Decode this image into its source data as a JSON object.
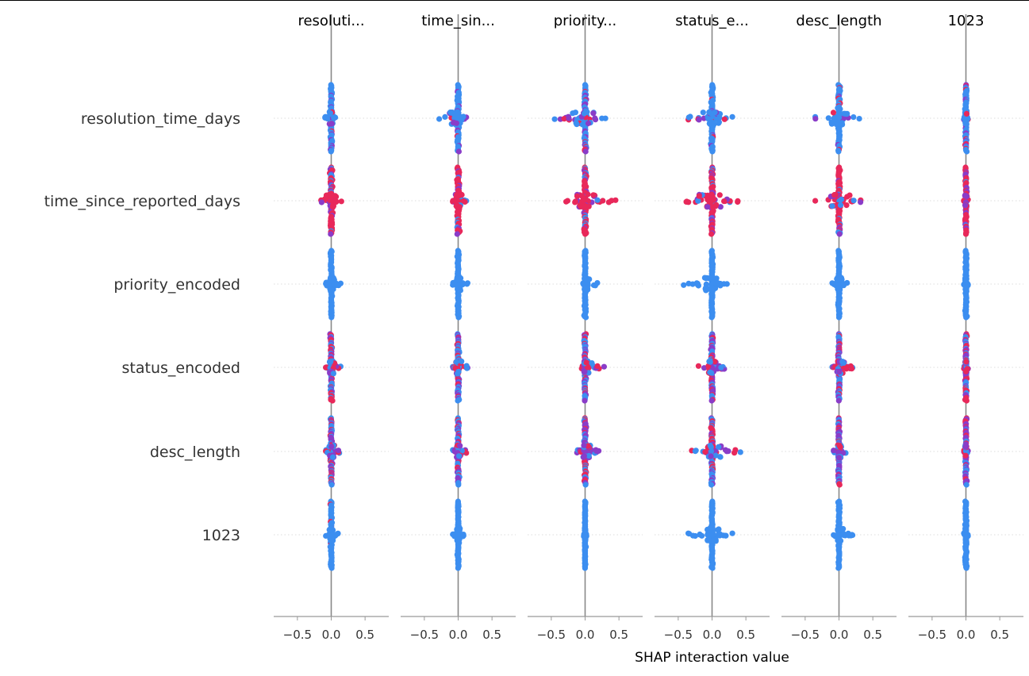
{
  "chart_data": {
    "type": "scatter",
    "subtype": "shap-interaction-summary-grid",
    "column_titles": [
      "resoluti...",
      "time_sin...",
      "priority...",
      "status_e...",
      "desc_length",
      "1023"
    ],
    "row_labels": [
      "resolution_time_days",
      "time_since_reported_days",
      "priority_encoded",
      "status_encoded",
      "desc_length",
      "1023"
    ],
    "xlabel": "SHAP interaction value",
    "xlim": [
      -0.85,
      0.85
    ],
    "xticks": [
      -0.5,
      0.0,
      0.5
    ],
    "xtick_labels": [
      "−0.5",
      "0.0",
      "0.5"
    ],
    "grid": false,
    "colors": {
      "low": "#3c8ef0",
      "mid": "#8a3cc8",
      "high": "#e8285a",
      "axis": "#999999",
      "row_guide": "#dddddd",
      "zero_line": "#888888"
    },
    "cells": [
      [
        {
          "min": -0.09,
          "max": 0.06,
          "spread": 0.025,
          "high": 0.05,
          "mid": 0.15,
          "bands": [
            0.45,
            0.35
          ]
        },
        {
          "min": -0.28,
          "max": 0.12,
          "spread": 0.025,
          "high": 0.05,
          "mid": 0.15,
          "bands": [
            0.45,
            0.35
          ]
        },
        {
          "min": -0.45,
          "max": 0.3,
          "spread": 0.03,
          "high": 0.15,
          "mid": 0.15,
          "bands": [
            0.45,
            0.35
          ]
        },
        {
          "min": -0.35,
          "max": 0.3,
          "spread": 0.03,
          "high": 0.05,
          "mid": 0.15,
          "bands": [
            0.45,
            0.35
          ]
        },
        {
          "min": -0.35,
          "max": 0.3,
          "spread": 0.03,
          "high": 0.1,
          "mid": 0.15,
          "bands": [
            0.45,
            0.35
          ]
        },
        {
          "min": -0.03,
          "max": 0.03,
          "spread": 0.02,
          "high": 0.15,
          "mid": 0.2,
          "bands": [
            0.45,
            0.35
          ]
        }
      ],
      [
        {
          "min": -0.15,
          "max": 0.15,
          "spread": 0.03,
          "high": 0.75,
          "mid": 0.15,
          "bands": [
            0.5,
            0.35
          ]
        },
        {
          "min": -0.08,
          "max": 0.12,
          "spread": 0.03,
          "high": 0.75,
          "mid": 0.15,
          "bands": [
            0.5,
            0.35
          ]
        },
        {
          "min": -0.28,
          "max": 0.45,
          "spread": 0.03,
          "high": 0.75,
          "mid": 0.15,
          "bands": [
            0.5,
            0.35
          ]
        },
        {
          "min": -0.38,
          "max": 0.38,
          "spread": 0.03,
          "high": 0.75,
          "mid": 0.15,
          "bands": [
            0.5,
            0.35
          ]
        },
        {
          "min": -0.35,
          "max": 0.32,
          "spread": 0.03,
          "high": 0.7,
          "mid": 0.15,
          "bands": [
            0.5,
            0.35
          ]
        },
        {
          "min": -0.03,
          "max": 0.03,
          "spread": 0.02,
          "high": 0.65,
          "mid": 0.25,
          "bands": [
            0.5,
            0.35
          ]
        }
      ],
      [
        {
          "min": -0.08,
          "max": 0.14,
          "spread": 0.02,
          "high": 0.0,
          "mid": 0.0,
          "bands": [
            0.35,
            0.25
          ]
        },
        {
          "min": -0.08,
          "max": 0.14,
          "spread": 0.02,
          "high": 0.0,
          "mid": 0.0,
          "bands": [
            0.35,
            0.25
          ]
        },
        {
          "min": -0.03,
          "max": 0.18,
          "spread": 0.02,
          "high": 0.0,
          "mid": 0.0,
          "bands": [
            0.35,
            0.25
          ]
        },
        {
          "min": -0.42,
          "max": 0.22,
          "spread": 0.02,
          "high": 0.0,
          "mid": 0.0,
          "bands": [
            0.35,
            0.25
          ]
        },
        {
          "min": -0.1,
          "max": 0.12,
          "spread": 0.02,
          "high": 0.0,
          "mid": 0.0,
          "bands": [
            0.35,
            0.25
          ]
        },
        {
          "min": -0.03,
          "max": 0.03,
          "spread": 0.02,
          "high": 0.0,
          "mid": 0.0,
          "bands": [
            0.35,
            0.25
          ]
        }
      ],
      [
        {
          "min": -0.08,
          "max": 0.14,
          "spread": 0.025,
          "high": 0.3,
          "mid": 0.3,
          "bands": [
            0.4,
            0.3
          ]
        },
        {
          "min": -0.08,
          "max": 0.14,
          "spread": 0.025,
          "high": 0.3,
          "mid": 0.3,
          "bands": [
            0.4,
            0.3
          ]
        },
        {
          "min": -0.05,
          "max": 0.28,
          "spread": 0.025,
          "high": 0.25,
          "mid": 0.3,
          "bands": [
            0.4,
            0.3
          ]
        },
        {
          "min": -0.2,
          "max": 0.18,
          "spread": 0.025,
          "high": 0.3,
          "mid": 0.3,
          "bands": [
            0.4,
            0.3
          ]
        },
        {
          "min": -0.1,
          "max": 0.2,
          "spread": 0.025,
          "high": 0.25,
          "mid": 0.3,
          "bands": [
            0.4,
            0.3
          ]
        },
        {
          "min": -0.03,
          "max": 0.03,
          "spread": 0.02,
          "high": 0.3,
          "mid": 0.35,
          "bands": [
            0.4,
            0.3
          ]
        }
      ],
      [
        {
          "min": -0.08,
          "max": 0.12,
          "spread": 0.025,
          "high": 0.25,
          "mid": 0.45,
          "bands": [
            0.4,
            0.3
          ]
        },
        {
          "min": -0.08,
          "max": 0.12,
          "spread": 0.025,
          "high": 0.25,
          "mid": 0.45,
          "bands": [
            0.4,
            0.3
          ]
        },
        {
          "min": -0.12,
          "max": 0.2,
          "spread": 0.025,
          "high": 0.25,
          "mid": 0.4,
          "bands": [
            0.4,
            0.3
          ]
        },
        {
          "min": -0.3,
          "max": 0.42,
          "spread": 0.025,
          "high": 0.3,
          "mid": 0.35,
          "bands": [
            0.4,
            0.3
          ]
        },
        {
          "min": -0.08,
          "max": 0.1,
          "spread": 0.025,
          "high": 0.25,
          "mid": 0.4,
          "bands": [
            0.4,
            0.3
          ]
        },
        {
          "min": -0.03,
          "max": 0.03,
          "spread": 0.02,
          "high": 0.25,
          "mid": 0.45,
          "bands": [
            0.4,
            0.3
          ]
        }
      ],
      [
        {
          "min": -0.08,
          "max": 0.1,
          "spread": 0.02,
          "high": 0.03,
          "mid": 0.0,
          "bands": [
            0.35,
            0.25
          ]
        },
        {
          "min": -0.08,
          "max": 0.08,
          "spread": 0.02,
          "high": 0.0,
          "mid": 0.0,
          "bands": [
            0.35,
            0.25
          ]
        },
        {
          "min": -0.02,
          "max": 0.02,
          "spread": 0.015,
          "high": 0.0,
          "mid": 0.0,
          "bands": [
            0.35,
            0.25
          ]
        },
        {
          "min": -0.35,
          "max": 0.3,
          "spread": 0.02,
          "high": 0.0,
          "mid": 0.0,
          "bands": [
            0.35,
            0.25
          ]
        },
        {
          "min": -0.08,
          "max": 0.2,
          "spread": 0.02,
          "high": 0.0,
          "mid": 0.0,
          "bands": [
            0.35,
            0.25
          ]
        },
        {
          "min": -0.03,
          "max": 0.03,
          "spread": 0.02,
          "high": 0.0,
          "mid": 0.0,
          "bands": [
            0.35,
            0.25
          ]
        }
      ]
    ]
  }
}
